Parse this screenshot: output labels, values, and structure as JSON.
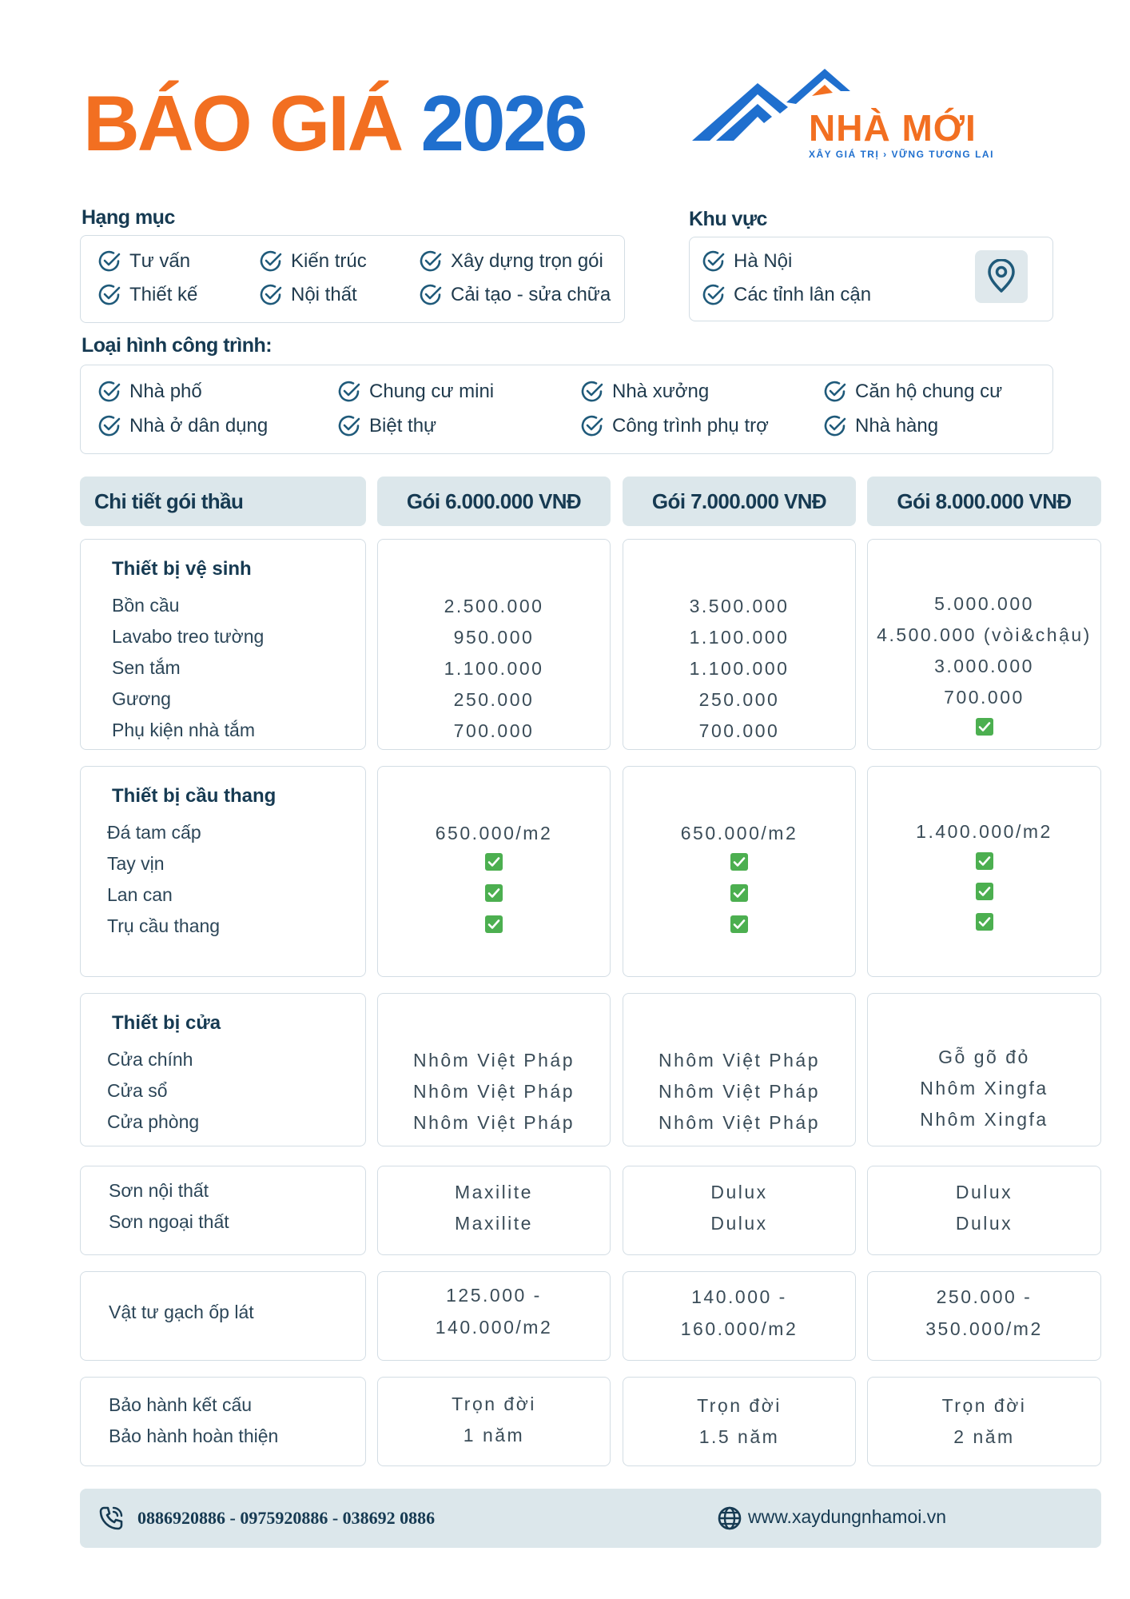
{
  "title": {
    "part1": "BÁO GIÁ",
    "part2": "2026"
  },
  "logo": {
    "name": "NHÀ MỚI",
    "tagline": "XÂY GIÁ TRỊ › VỮNG TƯƠNG LAI",
    "colors": {
      "blue": "#1f6fce",
      "orange": "#f26f21"
    }
  },
  "hang_muc": {
    "label": "Hạng mục",
    "items": [
      "Tư vấn",
      "Kiến trúc",
      "Xây dựng trọn gói",
      "Thiết kế",
      "Nội thất",
      "Cải tạo - sửa chữa"
    ]
  },
  "khu_vuc": {
    "label": "Khu vực",
    "items": [
      "Hà Nội",
      "Các tỉnh lân cận"
    ],
    "icon": "location-pin-icon"
  },
  "loai_hinh": {
    "label": "Loại hình công trình:",
    "items": [
      "Nhà phố",
      "Chung cư mini",
      "Nhà xưởng",
      "Căn hộ chung cư",
      "Nhà ở dân dụng",
      "Biệt thự",
      "Công trình phụ trợ",
      "Nhà hàng"
    ]
  },
  "table": {
    "headers": [
      "Chi tiết gói thầu",
      "Gói 6.000.000 VNĐ",
      "Gói 7.000.000 VNĐ",
      "Gói 8.000.000 VNĐ"
    ],
    "sections": [
      {
        "title": "Thiết bị vệ sinh",
        "rows": [
          "Bồn cầu",
          "Lavabo treo tường",
          "Sen tắm",
          "Gương",
          "Phụ kiện nhà tắm"
        ],
        "values": [
          [
            "2.500.000",
            "950.000",
            "1.100.000",
            "250.000",
            "700.000"
          ],
          [
            "3.500.000",
            "1.100.000",
            "1.100.000",
            "250.000",
            "700.000"
          ],
          [
            "5.000.000",
            "4.500.000 (vòi&chậu)",
            "3.000.000",
            "700.000",
            "✓"
          ]
        ]
      },
      {
        "title": "Thiết bị cầu thang",
        "rows": [
          "Đá tam cấp",
          "Tay vịn",
          "Lan can",
          "Trụ cầu thang"
        ],
        "values": [
          [
            "650.000/m2",
            "✓",
            "✓",
            "✓"
          ],
          [
            "650.000/m2",
            "✓",
            "✓",
            "✓"
          ],
          [
            "1.400.000/m2",
            "✓",
            "✓",
            "✓"
          ]
        ]
      },
      {
        "title": "Thiết bị cửa",
        "rows": [
          "Cửa chính",
          "Cửa sổ",
          "Cửa phòng"
        ],
        "values": [
          [
            "Nhôm Việt Pháp",
            "Nhôm Việt Pháp",
            "Nhôm Việt Pháp"
          ],
          [
            "Nhôm Việt Pháp",
            "Nhôm Việt Pháp",
            "Nhôm Việt Pháp"
          ],
          [
            "Gỗ gõ đỏ",
            "Nhôm Xingfa",
            "Nhôm Xingfa"
          ]
        ]
      },
      {
        "title": "",
        "rows": [
          "Sơn nội thất",
          "Sơn ngoại thất"
        ],
        "values": [
          [
            "Maxilite",
            "Maxilite"
          ],
          [
            "Dulux",
            "Dulux"
          ],
          [
            "Dulux",
            "Dulux"
          ]
        ]
      },
      {
        "title": "",
        "rows": [
          "Vật tư gạch ốp lát"
        ],
        "values": [
          [
            "125.000 -",
            "140.000/m2"
          ],
          [
            "140.000 -",
            "160.000/m2"
          ],
          [
            "250.000 -",
            "350.000/m2"
          ]
        ]
      },
      {
        "title": "",
        "rows": [
          "Bảo hành kết cấu",
          "Bảo hành hoàn thiện"
        ],
        "values": [
          [
            "Trọn đời",
            "1 năm"
          ],
          [
            "Trọn đời",
            "1.5 năm"
          ],
          [
            "Trọn đời",
            "2 năm"
          ]
        ]
      }
    ]
  },
  "footer": {
    "phones": "0886920886 - 0975920886 - 038692 0886",
    "website": "www.xaydungnhamoi.vn"
  },
  "colors": {
    "check_green": "#4caf50",
    "accent_orange": "#f26f21",
    "accent_blue": "#1f6fce",
    "header_bg": "#dce7eb"
  }
}
